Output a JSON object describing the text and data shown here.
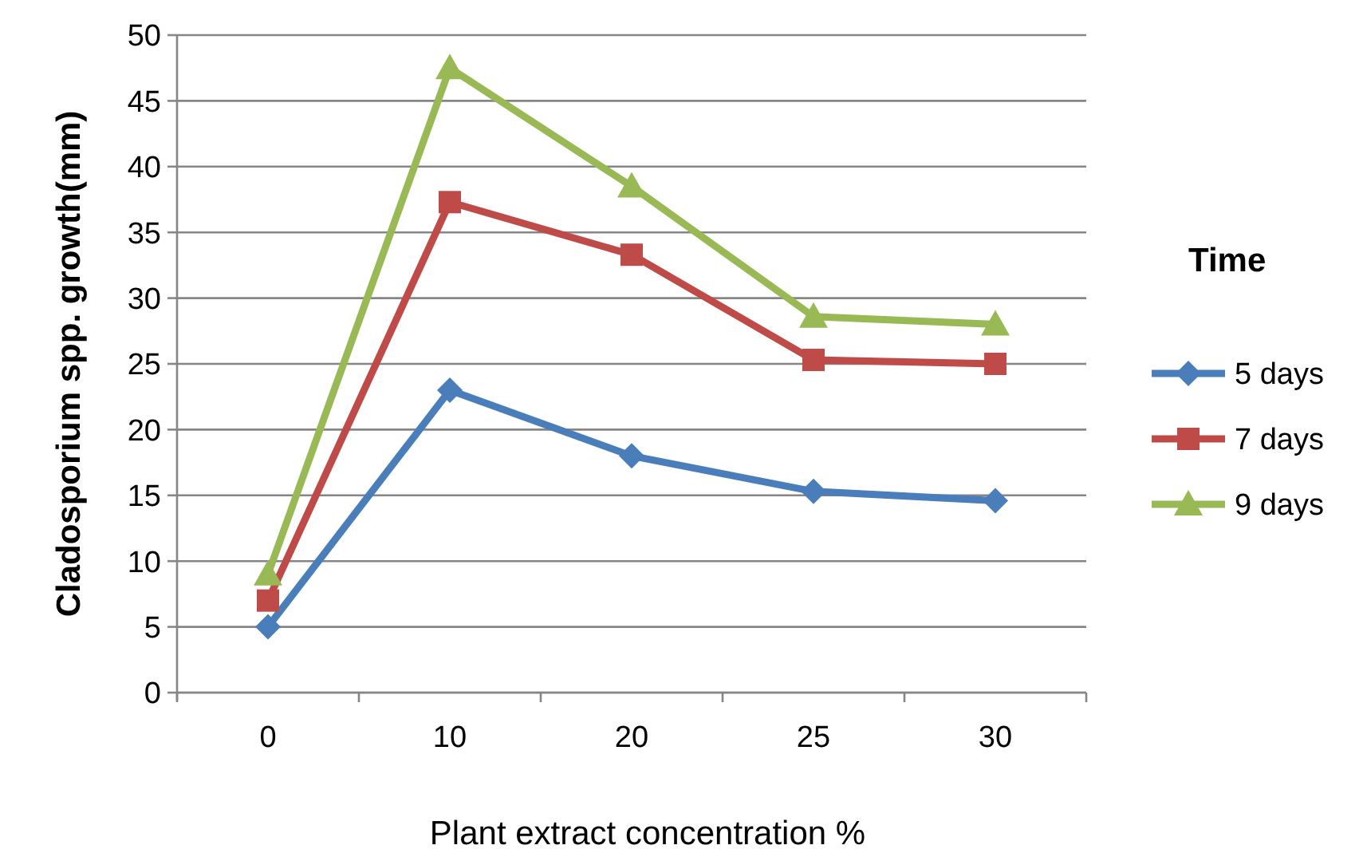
{
  "chart_data": {
    "type": "line",
    "xlabel": "Plant extract concentration %",
    "ylabel": "Cladosporium spp. growth(mm)",
    "legend_title": "Time",
    "categories": [
      "0",
      "10",
      "20",
      "25",
      "30"
    ],
    "series": [
      {
        "name": "5 days",
        "color": "#4a7ebb",
        "marker": "diamond",
        "values": [
          5,
          23,
          18,
          15.3,
          14.6
        ]
      },
      {
        "name": "7 days",
        "color": "#be4b48",
        "marker": "square",
        "values": [
          7,
          37.3,
          33.3,
          25.3,
          25
        ]
      },
      {
        "name": "9 days",
        "color": "#98b954",
        "marker": "triangle",
        "values": [
          9,
          47.5,
          38.5,
          28.6,
          28
        ]
      }
    ],
    "ylim": [
      0,
      50
    ],
    "yticks": [
      0,
      5,
      10,
      15,
      20,
      25,
      30,
      35,
      40,
      45,
      50
    ],
    "grid": "y",
    "legend": "right"
  }
}
